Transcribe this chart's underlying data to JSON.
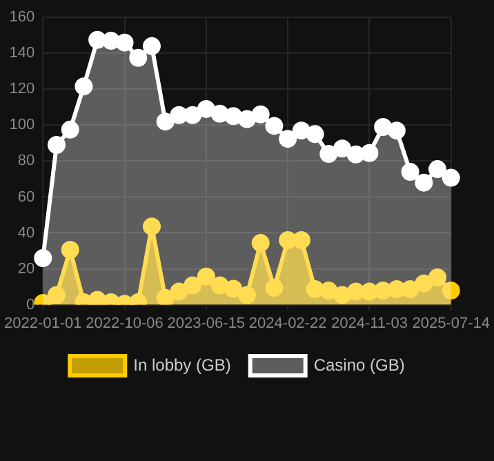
{
  "chart_data": {
    "type": "area",
    "categories": [
      "2022-01-01",
      null,
      null,
      null,
      null,
      null,
      "2022-10-06",
      null,
      null,
      null,
      null,
      null,
      "2023-06-15",
      null,
      null,
      null,
      null,
      null,
      "2024-02-22",
      null,
      null,
      null,
      null,
      null,
      "2024-11-03",
      null,
      null,
      null,
      null,
      null,
      "2025-07-14"
    ],
    "series": [
      {
        "name": "In lobby (GB)",
        "color": "#ffcc00",
        "values": [
          1,
          5.4,
          30.6,
          1.4,
          2.7,
          1.4,
          0.5,
          1.4,
          43.6,
          3.8,
          7.3,
          10.8,
          15.7,
          10.8,
          8.9,
          5.4,
          34.4,
          9.5,
          36,
          36,
          8.7,
          7.9,
          5.4,
          7.3,
          7.3,
          7.9,
          8.7,
          8.7,
          11.9,
          15.2,
          7.9
        ]
      },
      {
        "name": "Casino (GB)",
        "color": "#ffffff",
        "values": [
          26,
          89,
          97.5,
          121.6,
          147.5,
          147,
          146,
          137.5,
          144,
          102,
          105.6,
          105.6,
          109,
          106.4,
          105,
          103.4,
          106,
          99.6,
          92.4,
          97,
          95,
          84,
          87,
          83.7,
          84.5,
          99,
          97,
          74,
          68,
          75.5,
          70.7
        ]
      }
    ],
    "ylim": [
      0,
      160
    ],
    "yticks": [
      0,
      20,
      40,
      60,
      80,
      100,
      120,
      140,
      160
    ],
    "grid": true,
    "legend": "bottom",
    "marker": "circle"
  }
}
